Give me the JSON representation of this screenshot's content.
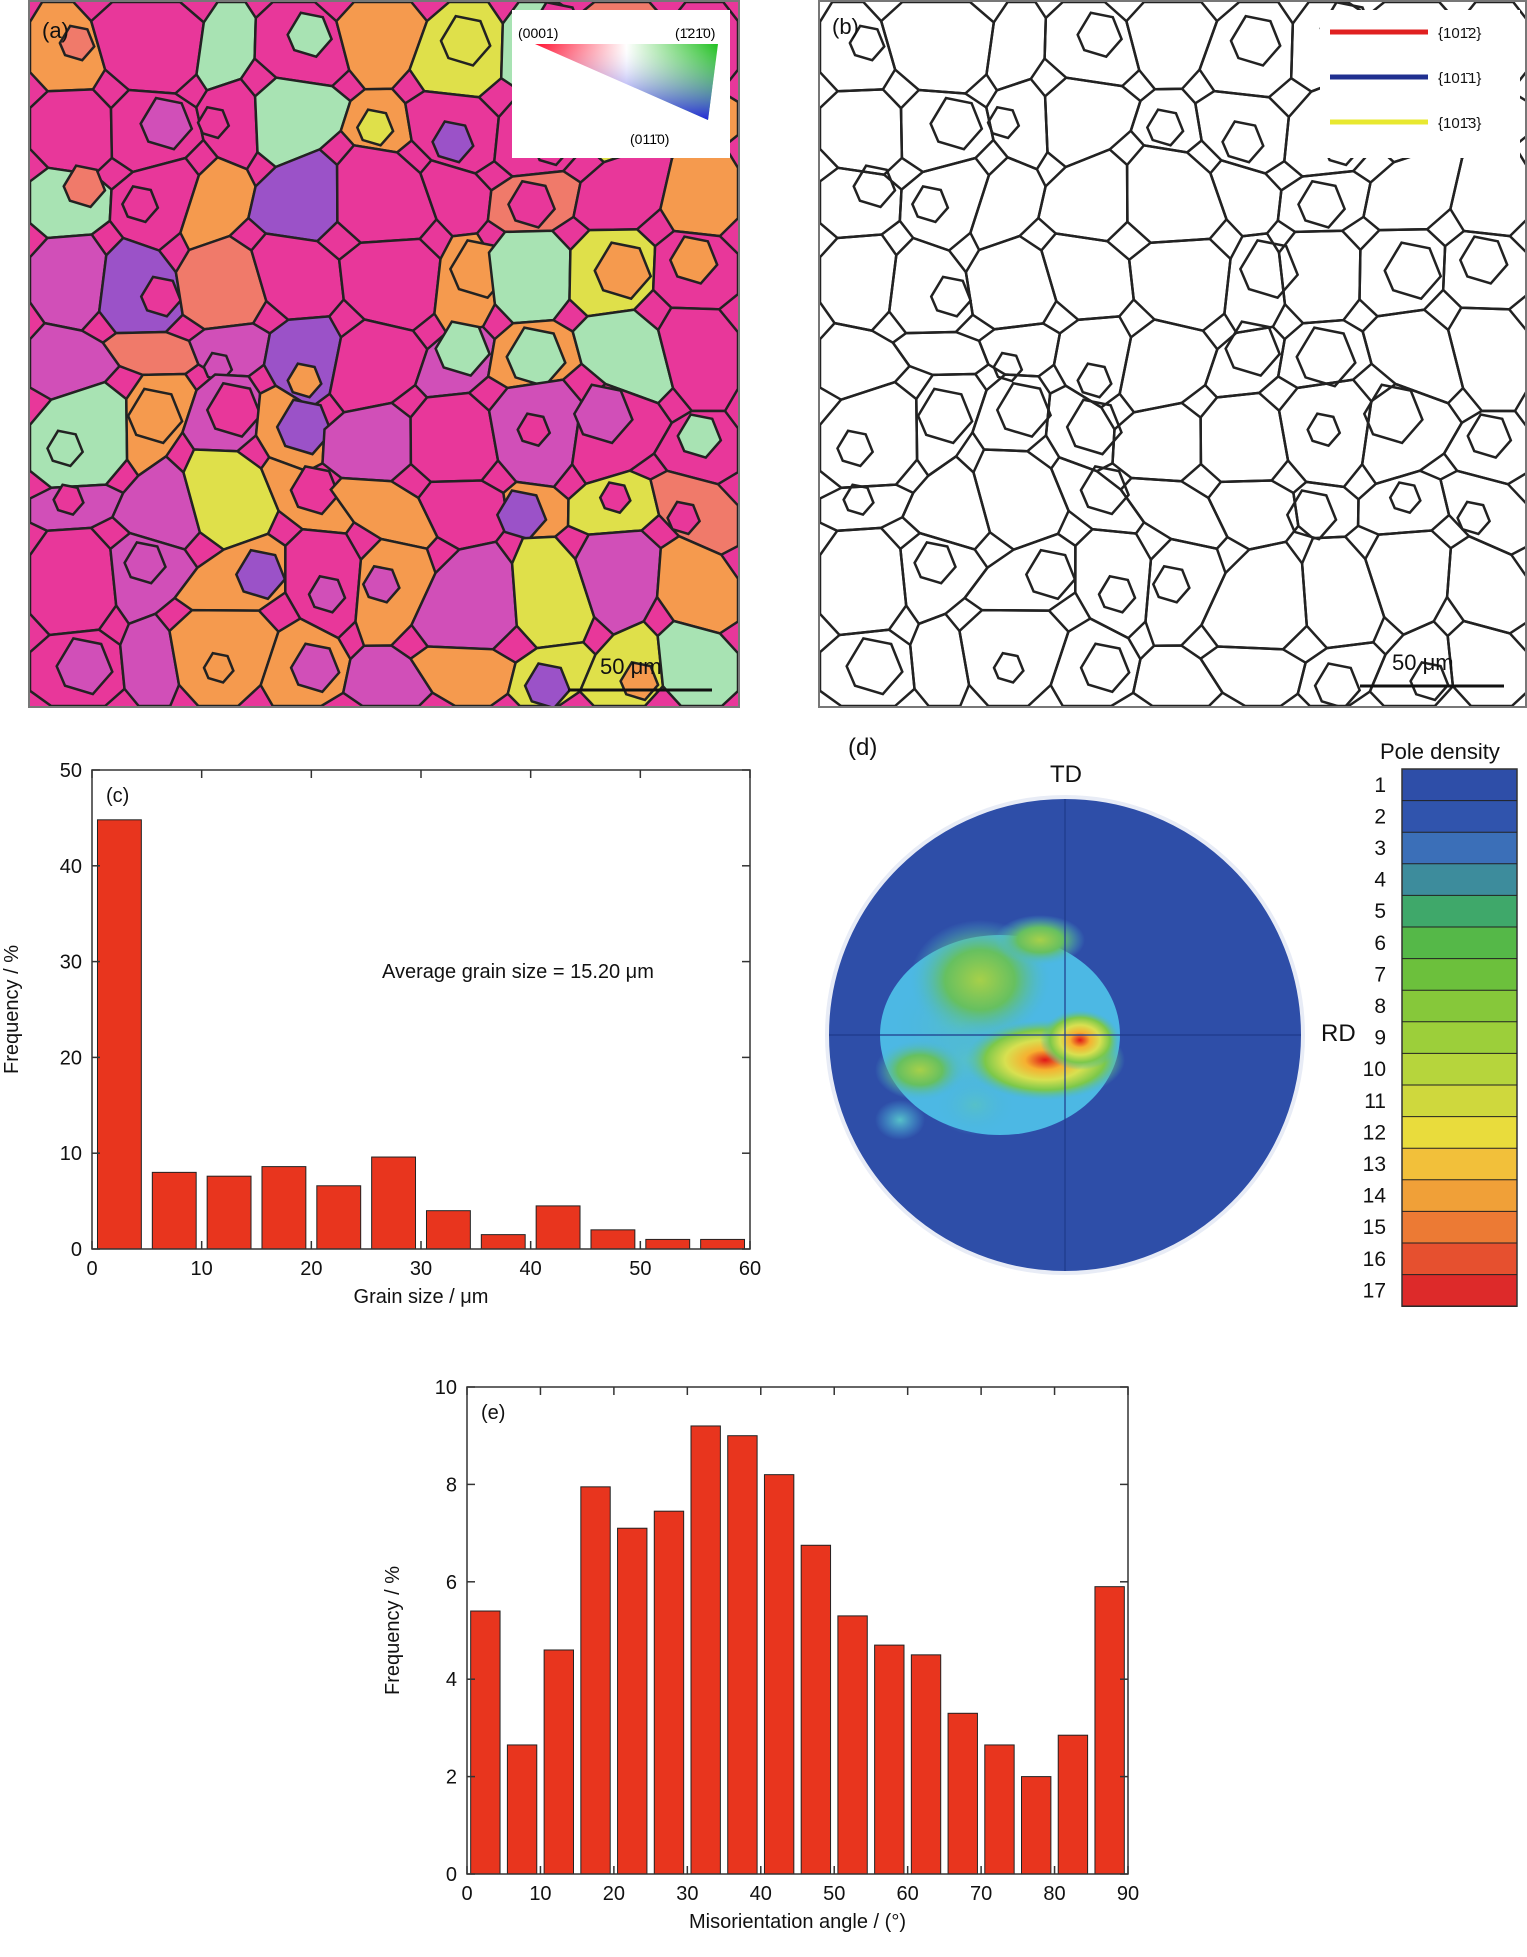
{
  "panel_a": {
    "label": "(a)",
    "scale_bar": "50 μm",
    "ipf_key": {
      "top_left": "(0001)",
      "top_right": "(1̄21̄0)",
      "bottom": "(011̄0)"
    },
    "colors": {
      "pink": "#e8379a",
      "magenta": "#d14fb8",
      "orange": "#f59a4e",
      "salmon": "#f07a6a",
      "violet": "#9b52c8",
      "yellow": "#dfe04a",
      "mint": "#a8e3b3",
      "boundary": "#222222"
    }
  },
  "panel_b": {
    "label": "(b)",
    "scale_bar": "50 μm",
    "legend": [
      {
        "label": "{101̄2}",
        "color": "#e02020"
      },
      {
        "label": "{101̄1}",
        "color": "#203090"
      },
      {
        "label": "{101̄3}",
        "color": "#e8e830"
      }
    ]
  },
  "panel_d": {
    "label": "(d)",
    "td_label": "TD",
    "rd_label": "RD",
    "colorbar_title": "Pole density",
    "colorbar_levels": [
      "1",
      "2",
      "3",
      "4",
      "5",
      "6",
      "7",
      "8",
      "9",
      "10",
      "11",
      "12",
      "13",
      "14",
      "15",
      "16",
      "17"
    ],
    "colorbar_colors": [
      "#2e4ea8",
      "#3054ad",
      "#3b6fb8",
      "#3d8c9c",
      "#3fa86a",
      "#55b848",
      "#6cc03c",
      "#86c83a",
      "#9ccf3a",
      "#b6d53c",
      "#cfd83d",
      "#e9dc3c",
      "#f2c03a",
      "#f0a038",
      "#ec7a34",
      "#e6502f",
      "#dd2a2a"
    ]
  },
  "chart_data": [
    {
      "type": "bar",
      "panel_label": "(c)",
      "x": [
        2.5,
        7.5,
        12.5,
        17.5,
        22.5,
        27.5,
        32.5,
        37.5,
        42.5,
        47.5,
        52.5,
        57.5
      ],
      "values": [
        44.8,
        8.0,
        7.6,
        8.6,
        6.6,
        9.6,
        4.0,
        1.5,
        4.5,
        2.0,
        1.0,
        1.0
      ],
      "xlabel": "Grain size / μm",
      "ylabel": "Frequency / %",
      "xlim": [
        0,
        60
      ],
      "ylim": [
        0,
        50
      ],
      "xticks": [
        0,
        10,
        20,
        30,
        40,
        50,
        60
      ],
      "yticks": [
        0,
        10,
        20,
        30,
        40,
        50
      ],
      "annotation": "Average grain size = 15.20 μm",
      "bar_color": "#e8351e"
    },
    {
      "type": "bar",
      "panel_label": "(e)",
      "x": [
        2.5,
        7.5,
        12.5,
        17.5,
        22.5,
        27.5,
        32.5,
        37.5,
        42.5,
        47.5,
        52.5,
        57.5,
        62.5,
        67.5,
        72.5,
        77.5,
        82.5,
        87.5
      ],
      "values": [
        5.4,
        2.65,
        4.6,
        7.95,
        7.1,
        7.45,
        9.2,
        9.0,
        8.2,
        6.75,
        5.3,
        4.7,
        4.5,
        3.3,
        2.65,
        2.0,
        2.85,
        5.9
      ],
      "xlabel": "Misorientation angle / (°)",
      "ylabel": "Frequency / %",
      "xlim": [
        0,
        90
      ],
      "ylim": [
        0,
        10
      ],
      "xticks": [
        0,
        10,
        20,
        30,
        40,
        50,
        60,
        70,
        80,
        90
      ],
      "yticks": [
        0,
        2,
        4,
        6,
        8,
        10
      ],
      "bar_color": "#e8351e"
    }
  ]
}
